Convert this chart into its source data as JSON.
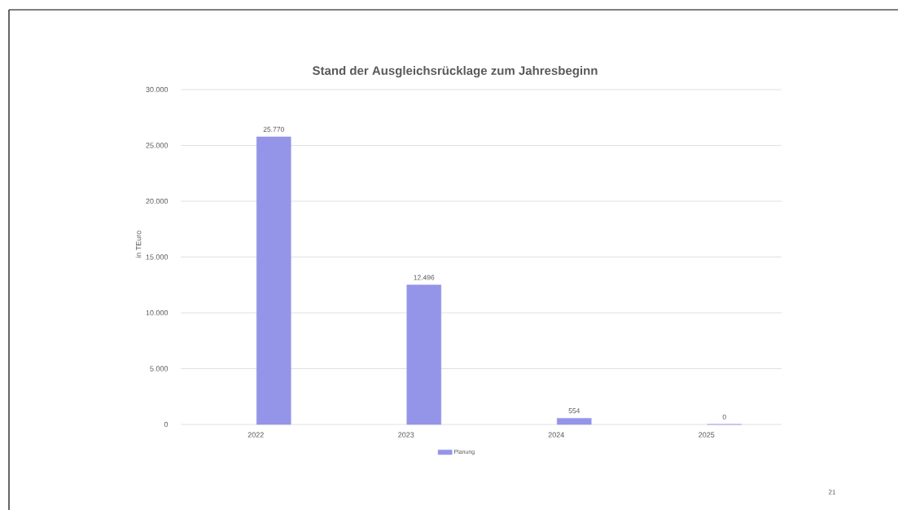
{
  "chart_data": {
    "type": "bar",
    "title": "Stand der Ausgleichsrücklage zum Jahresbeginn",
    "ylabel": "in TEuro",
    "categories": [
      "2022",
      "2023",
      "2024",
      "2025"
    ],
    "series": [
      {
        "name": "Planung",
        "color": "#9494e8",
        "values": [
          25770,
          12496,
          554,
          0
        ],
        "value_labels": [
          "25.770",
          "12.496",
          "554",
          "0"
        ]
      }
    ],
    "ylim": [
      0,
      30000
    ],
    "yticks": [
      0,
      {
        "value": 5000,
        "label": "5.000"
      },
      {
        "value": 10000,
        "label": "10.000"
      },
      {
        "value": 15000,
        "label": "15.000"
      },
      {
        "value": 20000,
        "label": "20.000"
      },
      {
        "value": 25000,
        "label": "25.000"
      },
      {
        "value": 30000,
        "label": "30.000"
      }
    ],
    "grid": "y",
    "legend": "bottom",
    "annotations": [
      "21"
    ]
  }
}
